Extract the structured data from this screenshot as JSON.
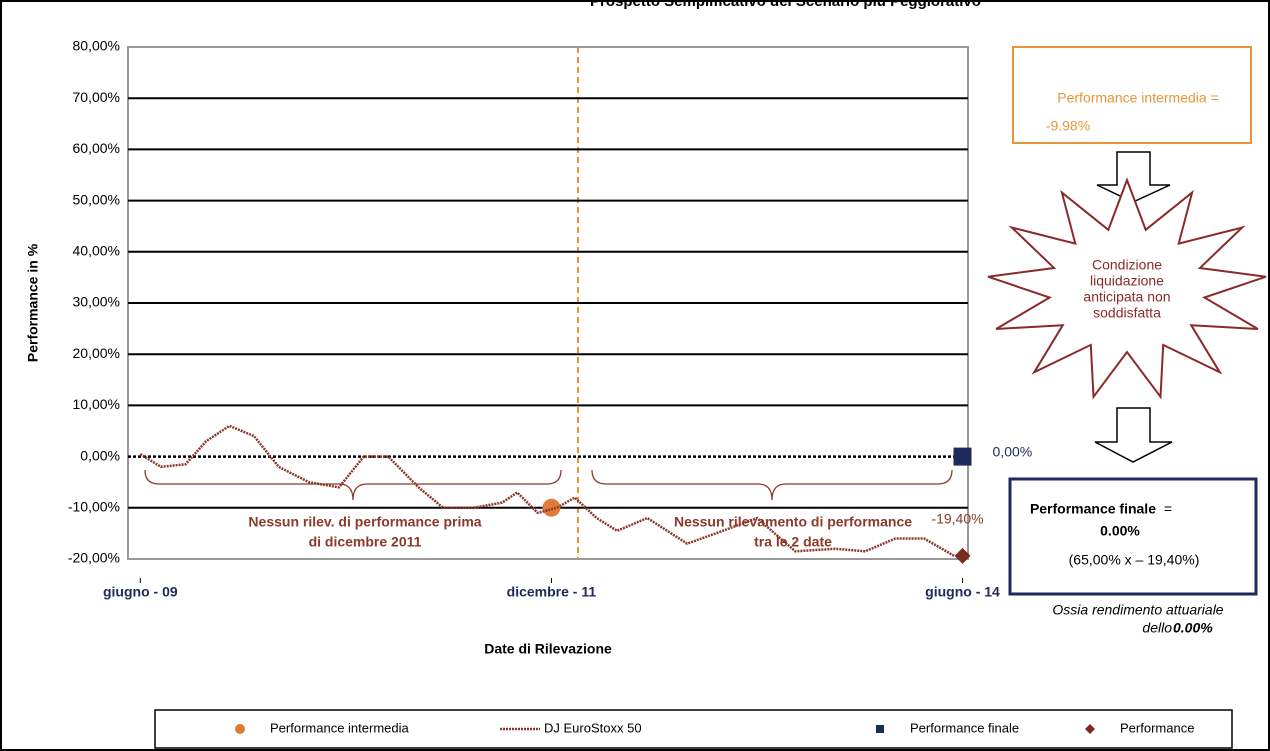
{
  "chart_data": {
    "type": "line",
    "title": "Prospetto Semplificativo del Scenario più Peggiorativo",
    "y_label": "Performance in %",
    "x_label": "Date di Rilevazione",
    "ylim": [
      -20,
      80
    ],
    "yticks": [
      {
        "value": -20,
        "label": "-20,00%"
      },
      {
        "value": -10,
        "label": "-10,00%"
      },
      {
        "value": 0,
        "label": "0,00%"
      },
      {
        "value": 10,
        "label": "10,00%"
      },
      {
        "value": 20,
        "label": "20,00%"
      },
      {
        "value": 30,
        "label": "30,00%"
      },
      {
        "value": 40,
        "label": "40,00%"
      },
      {
        "value": 50,
        "label": "50,00%"
      },
      {
        "value": 60,
        "label": "60,00%"
      },
      {
        "value": 70,
        "label": "70,00%"
      },
      {
        "value": 80,
        "label": "80,00%"
      }
    ],
    "xlim": [
      -0.9,
      60.4
    ],
    "xticks": [
      {
        "value": 0,
        "label": "giugno - 09"
      },
      {
        "value": 30,
        "label": "dicembre - 11"
      },
      {
        "value": 60,
        "label": "giugno - 14"
      }
    ],
    "grid": true,
    "series": [
      {
        "name": "Performance intermedia",
        "color": "#e07b39",
        "marker": "circle",
        "x": [
          30
        ],
        "values": [
          -9.98
        ]
      },
      {
        "name": "DJ EuroStoxx 50",
        "color": "#8b3a2a",
        "marker": "line",
        "x": [
          0,
          1.5,
          3.3,
          4.8,
          6.5,
          8.3,
          10.1,
          12.3,
          14.5,
          16.3,
          18.1,
          20.3,
          22.1,
          24.3,
          26.4,
          27.5,
          29,
          30.4,
          31.7,
          33.3,
          34.8,
          37,
          39.9,
          42,
          45,
          47.8,
          50.7,
          52.9,
          55.1,
          57.2,
          59.4
        ],
        "values": [
          0.5,
          -2,
          -1.5,
          3,
          6,
          4,
          -2,
          -5,
          -6,
          0,
          0,
          -6,
          -10,
          -10,
          -9,
          -7,
          -11,
          -10,
          -8,
          -12,
          -14.5,
          -12,
          -17,
          -15,
          -12,
          -18.5,
          -18,
          -18.5,
          -16,
          -16,
          -19.4
        ]
      },
      {
        "name": "Performance finale",
        "color": "#1f2a5c",
        "marker": "square",
        "x": [
          60
        ],
        "values": [
          0
        ],
        "value_labels": [
          "0,00%"
        ]
      },
      {
        "name": "Performance",
        "color": "#7a2a1e",
        "marker": "diamond",
        "x": [
          60
        ],
        "values": [
          -19.4
        ],
        "value_labels": [
          "-19,40%"
        ]
      }
    ],
    "annotations": [
      "Nessun rilev. di performance prima",
      "di dicembre 2011",
      "Nessun rilevamento di performance",
      "tra le 2 date"
    ]
  },
  "panel": {
    "intermedia_label": "Performance intermedia =",
    "intermedia_value": "-9.98%",
    "condition": [
      "Condizione",
      "liquidazione",
      "anticipata non",
      "soddisfatta"
    ],
    "finale_label": "Performance finale",
    "finale_eq": "=",
    "finale_value": "0.00%",
    "finale_formula": "(65,00% x – 19,40%)",
    "note_1": "Ossia rendimento attuariale",
    "note_2": "dello ",
    "note_value": "0.00%"
  }
}
